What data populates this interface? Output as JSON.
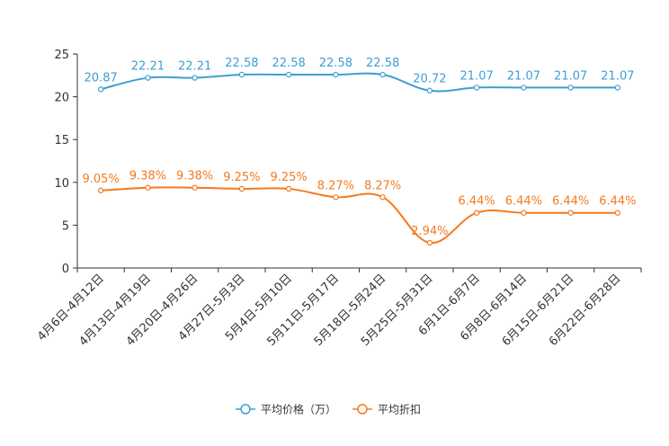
{
  "chart_data": {
    "type": "line",
    "title": "",
    "xlabel": "",
    "ylabel": "",
    "ylim": [
      0,
      25
    ],
    "yticks": [
      0,
      5,
      10,
      15,
      20,
      25
    ],
    "grid": false,
    "legend_position": "bottom-center",
    "categories": [
      "4月6日-4月12日",
      "4月13日-4月19日",
      "4月20日-4月26日",
      "4月27日-5月3日",
      "5月4日-5月10日",
      "5月11日-5月17日",
      "5月18日-5月24日",
      "5月25日-5月31日",
      "6月1日-6月7日",
      "6月8日-6月14日",
      "6月15日-6月21日",
      "6月22日-6月28日"
    ],
    "series": [
      {
        "name": "平均价格（万）",
        "color": "#3d9fd3",
        "values": [
          20.87,
          22.21,
          22.21,
          22.58,
          22.58,
          22.58,
          22.58,
          20.72,
          21.07,
          21.07,
          21.07,
          21.07
        ],
        "labels": [
          "20.87",
          "22.21",
          "22.21",
          "22.58",
          "22.58",
          "22.58",
          "22.58",
          "20.72",
          "21.07",
          "21.07",
          "21.07",
          "21.07"
        ]
      },
      {
        "name": "平均折扣",
        "color": "#f47a1f",
        "values": [
          9.05,
          9.38,
          9.38,
          9.25,
          9.25,
          8.27,
          8.27,
          2.94,
          6.44,
          6.44,
          6.44,
          6.44
        ],
        "labels": [
          "9.05%",
          "9.38%",
          "9.38%",
          "9.25%",
          "9.25%",
          "8.27%",
          "8.27%",
          "2.94%",
          "6.44%",
          "6.44%",
          "6.44%",
          "6.44%"
        ]
      }
    ]
  }
}
